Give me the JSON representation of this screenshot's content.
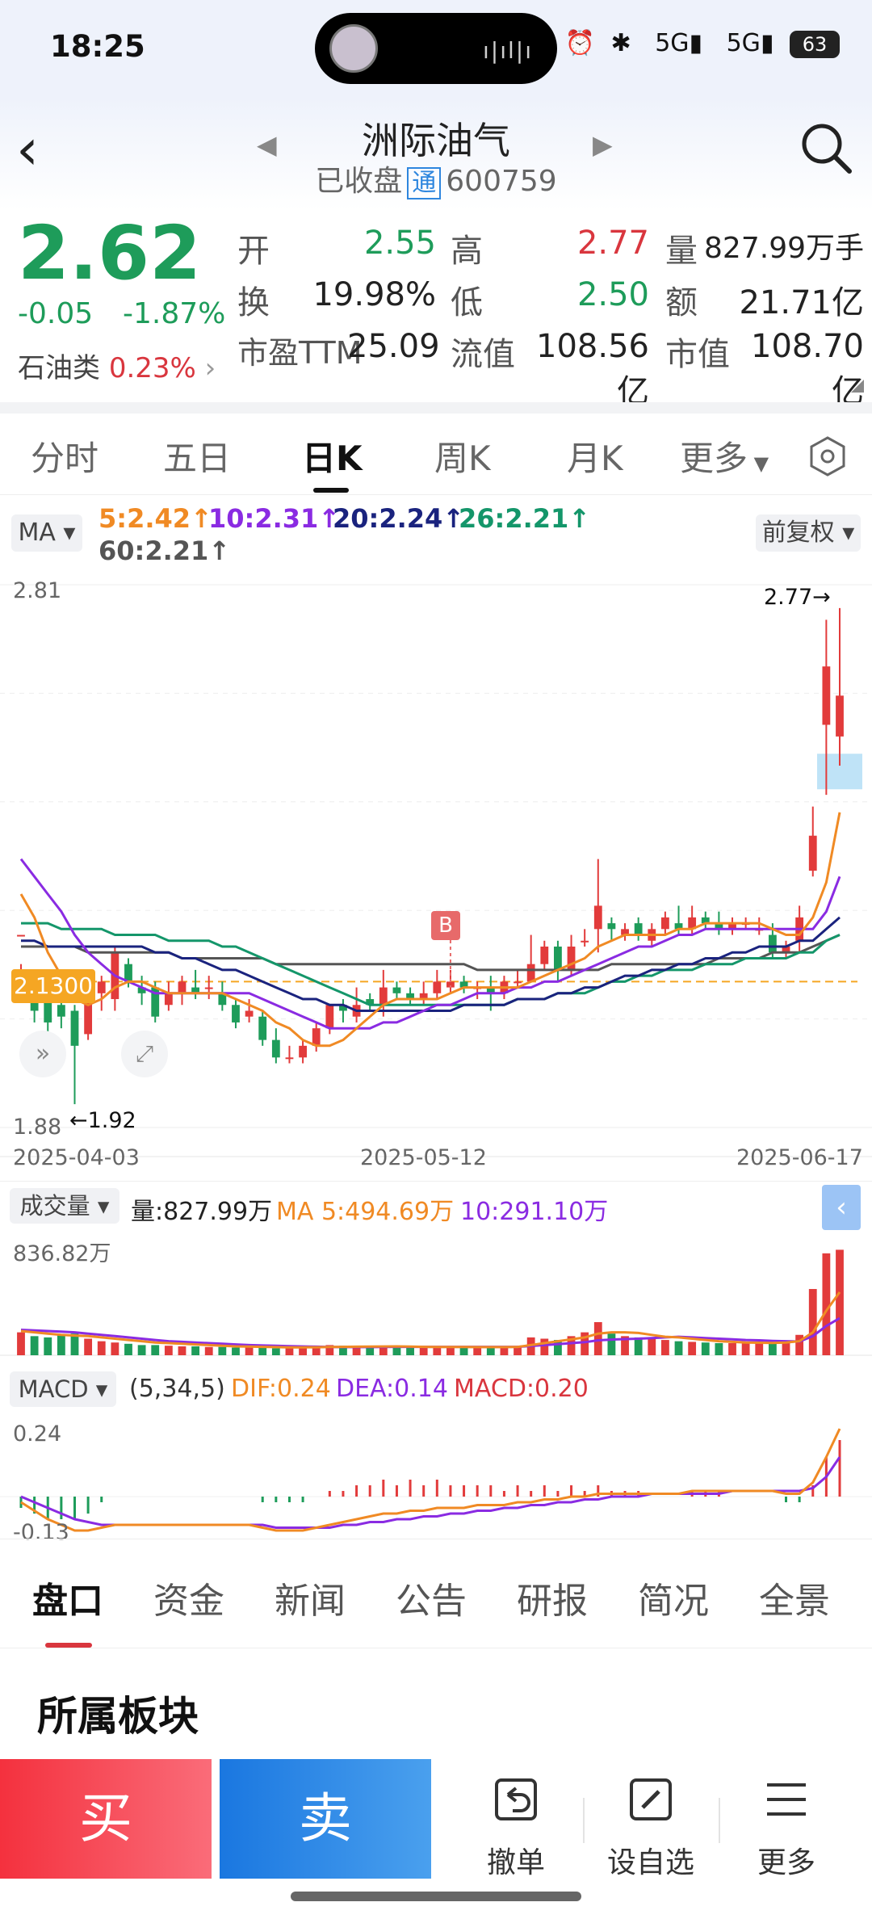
{
  "status_bar": {
    "time": "18:25",
    "battery": "63",
    "network": "5G"
  },
  "header": {
    "name": "洲际油气",
    "status": "已收盘",
    "tong": "通",
    "code": "600759"
  },
  "quote": {
    "price": "2.62",
    "change": "-0.05",
    "change_pct": "-1.87%",
    "sector_name": "石油类",
    "sector_pct": "0.23%",
    "fields": [
      {
        "label": "开",
        "value": "2.55",
        "color": "green"
      },
      {
        "label": "高",
        "value": "2.77",
        "color": "red"
      },
      {
        "label": "量",
        "value": "827.99万手",
        "color": "dark"
      },
      {
        "label": "换",
        "value": "19.98%",
        "color": "dark"
      },
      {
        "label": "低",
        "value": "2.50",
        "color": "green"
      },
      {
        "label": "额",
        "value": "21.71亿",
        "color": "dark"
      },
      {
        "label": "市盈TTM",
        "value": "25.09",
        "color": "dark"
      },
      {
        "label": "流值",
        "value": "108.56亿",
        "color": "dark"
      },
      {
        "label": "市值",
        "value": "108.70亿",
        "color": "dark"
      }
    ]
  },
  "tabs": [
    "分时",
    "五日",
    "日K",
    "周K",
    "月K",
    "更多"
  ],
  "ma": {
    "selector": "MA",
    "items": [
      "5:2.42↑",
      "10:2.31↑",
      "20:2.24↑",
      "26:2.21↑",
      "60:2.21↑"
    ],
    "adjust": "前复权"
  },
  "chart_data": {
    "type": "candlestick",
    "ymax_label": "2.81",
    "ymin_label": "1.88",
    "high_mark": "2.77→",
    "low_mark": "←1.92",
    "price_tag": "2.1300",
    "buy_marker": "B",
    "dates": [
      "2025-04-03",
      "2025-05-12",
      "2025-06-17"
    ],
    "ylim": [
      1.88,
      2.81
    ],
    "candles": [
      [
        2.21,
        2.21,
        2.16,
        2.14
      ],
      [
        2.13,
        2.08,
        2.09,
        2.06
      ],
      [
        2.1,
        2.06,
        2.11,
        2.04
      ],
      [
        2.09,
        2.07,
        2.1,
        2.05
      ],
      [
        2.08,
        2.02,
        2.09,
        1.92
      ],
      [
        2.04,
        2.1,
        2.11,
        2.03
      ],
      [
        2.11,
        2.13,
        2.14,
        2.08
      ],
      [
        2.1,
        2.18,
        2.19,
        2.08
      ],
      [
        2.16,
        2.13,
        2.17,
        2.12
      ],
      [
        2.12,
        2.11,
        2.14,
        2.09
      ],
      [
        2.12,
        2.07,
        2.13,
        2.06
      ],
      [
        2.09,
        2.11,
        2.13,
        2.08
      ],
      [
        2.11,
        2.13,
        2.14,
        2.09
      ],
      [
        2.12,
        2.11,
        2.15,
        2.1
      ],
      [
        2.12,
        2.12,
        2.14,
        2.1
      ],
      [
        2.11,
        2.09,
        2.13,
        2.08
      ],
      [
        2.09,
        2.06,
        2.1,
        2.05
      ],
      [
        2.07,
        2.08,
        2.1,
        2.06
      ],
      [
        2.07,
        2.03,
        2.08,
        2.02
      ],
      [
        2.03,
        2.0,
        2.05,
        1.99
      ],
      [
        2.0,
        2.0,
        2.02,
        1.99
      ],
      [
        2.0,
        2.02,
        2.03,
        1.99
      ],
      [
        2.02,
        2.05,
        2.06,
        2.01
      ],
      [
        2.05,
        2.09,
        2.09,
        2.04
      ],
      [
        2.09,
        2.08,
        2.1,
        2.06
      ],
      [
        2.07,
        2.09,
        2.12,
        2.06
      ],
      [
        2.1,
        2.09,
        2.11,
        2.08
      ],
      [
        2.09,
        2.12,
        2.15,
        2.07
      ],
      [
        2.12,
        2.11,
        2.13,
        2.1
      ],
      [
        2.11,
        2.1,
        2.12,
        2.09
      ],
      [
        2.1,
        2.11,
        2.13,
        2.09
      ],
      [
        2.11,
        2.13,
        2.15,
        2.1
      ],
      [
        2.12,
        2.13,
        2.15,
        2.11
      ],
      [
        2.13,
        2.12,
        2.14,
        2.11
      ],
      [
        2.12,
        2.12,
        2.13,
        2.1
      ],
      [
        2.12,
        2.11,
        2.14,
        2.08
      ],
      [
        2.11,
        2.13,
        2.14,
        2.1
      ],
      [
        2.13,
        2.13,
        2.15,
        2.12
      ],
      [
        2.13,
        2.16,
        2.21,
        2.13
      ],
      [
        2.16,
        2.19,
        2.2,
        2.15
      ],
      [
        2.19,
        2.15,
        2.2,
        2.13
      ],
      [
        2.15,
        2.19,
        2.21,
        2.14
      ],
      [
        2.2,
        2.2,
        2.22,
        2.19
      ],
      [
        2.22,
        2.26,
        2.34,
        2.18
      ],
      [
        2.23,
        2.22,
        2.24,
        2.2
      ],
      [
        2.21,
        2.22,
        2.23,
        2.2
      ],
      [
        2.23,
        2.21,
        2.24,
        2.2
      ],
      [
        2.2,
        2.22,
        2.23,
        2.19
      ],
      [
        2.22,
        2.24,
        2.25,
        2.21
      ],
      [
        2.23,
        2.22,
        2.26,
        2.21
      ],
      [
        2.22,
        2.24,
        2.26,
        2.21
      ],
      [
        2.24,
        2.23,
        2.25,
        2.22
      ],
      [
        2.23,
        2.22,
        2.25,
        2.21
      ],
      [
        2.22,
        2.23,
        2.24,
        2.21
      ],
      [
        2.23,
        2.23,
        2.24,
        2.22
      ],
      [
        2.22,
        2.22,
        2.24,
        2.21
      ],
      [
        2.21,
        2.18,
        2.23,
        2.17
      ],
      [
        2.18,
        2.19,
        2.2,
        2.17
      ],
      [
        2.2,
        2.24,
        2.26,
        2.18
      ],
      [
        2.32,
        2.38,
        2.43,
        2.31
      ],
      [
        2.57,
        2.67,
        2.75,
        2.45
      ],
      [
        2.55,
        2.62,
        2.77,
        2.5
      ]
    ],
    "ma5": [
      2.28,
      2.24,
      2.18,
      2.14,
      2.1,
      2.09,
      2.1,
      2.12,
      2.13,
      2.13,
      2.12,
      2.11,
      2.11,
      2.11,
      2.11,
      2.11,
      2.1,
      2.09,
      2.08,
      2.06,
      2.05,
      2.03,
      2.02,
      2.02,
      2.03,
      2.05,
      2.07,
      2.09,
      2.1,
      2.1,
      2.1,
      2.1,
      2.11,
      2.12,
      2.12,
      2.12,
      2.12,
      2.12,
      2.13,
      2.14,
      2.15,
      2.16,
      2.17,
      2.19,
      2.2,
      2.21,
      2.21,
      2.21,
      2.21,
      2.22,
      2.22,
      2.23,
      2.23,
      2.23,
      2.23,
      2.23,
      2.22,
      2.21,
      2.21,
      2.24,
      2.3,
      2.42
    ],
    "ma10": [
      2.34,
      2.31,
      2.28,
      2.25,
      2.21,
      2.18,
      2.16,
      2.14,
      2.13,
      2.12,
      2.11,
      2.11,
      2.11,
      2.11,
      2.11,
      2.11,
      2.11,
      2.11,
      2.1,
      2.09,
      2.08,
      2.07,
      2.06,
      2.05,
      2.05,
      2.05,
      2.05,
      2.06,
      2.06,
      2.07,
      2.08,
      2.09,
      2.09,
      2.1,
      2.11,
      2.11,
      2.11,
      2.12,
      2.12,
      2.13,
      2.13,
      2.14,
      2.15,
      2.16,
      2.17,
      2.18,
      2.19,
      2.19,
      2.2,
      2.21,
      2.21,
      2.22,
      2.22,
      2.22,
      2.22,
      2.22,
      2.22,
      2.22,
      2.22,
      2.22,
      2.25,
      2.31
    ],
    "ma20": [
      2.2,
      2.2,
      2.19,
      2.19,
      2.19,
      2.19,
      2.19,
      2.19,
      2.19,
      2.19,
      2.18,
      2.18,
      2.17,
      2.17,
      2.16,
      2.15,
      2.15,
      2.14,
      2.13,
      2.12,
      2.11,
      2.1,
      2.1,
      2.09,
      2.09,
      2.08,
      2.08,
      2.08,
      2.08,
      2.08,
      2.08,
      2.08,
      2.08,
      2.09,
      2.09,
      2.09,
      2.09,
      2.1,
      2.1,
      2.1,
      2.11,
      2.11,
      2.12,
      2.12,
      2.13,
      2.14,
      2.14,
      2.15,
      2.15,
      2.16,
      2.16,
      2.17,
      2.17,
      2.18,
      2.18,
      2.19,
      2.19,
      2.19,
      2.2,
      2.2,
      2.22,
      2.24
    ],
    "ma26": [
      2.23,
      2.23,
      2.23,
      2.22,
      2.22,
      2.22,
      2.22,
      2.21,
      2.21,
      2.21,
      2.21,
      2.2,
      2.2,
      2.2,
      2.2,
      2.19,
      2.19,
      2.18,
      2.17,
      2.16,
      2.15,
      2.14,
      2.13,
      2.12,
      2.11,
      2.1,
      2.09,
      2.09,
      2.09,
      2.09,
      2.09,
      2.09,
      2.09,
      2.09,
      2.09,
      2.09,
      2.09,
      2.1,
      2.1,
      2.1,
      2.11,
      2.11,
      2.11,
      2.12,
      2.13,
      2.13,
      2.14,
      2.14,
      2.15,
      2.15,
      2.15,
      2.16,
      2.16,
      2.16,
      2.17,
      2.17,
      2.17,
      2.17,
      2.18,
      2.18,
      2.2,
      2.21
    ],
    "ma60": [
      2.19,
      2.19,
      2.19,
      2.19,
      2.19,
      2.18,
      2.18,
      2.18,
      2.18,
      2.18,
      2.18,
      2.18,
      2.17,
      2.17,
      2.17,
      2.17,
      2.17,
      2.17,
      2.17,
      2.16,
      2.16,
      2.16,
      2.16,
      2.16,
      2.16,
      2.16,
      2.16,
      2.16,
      2.16,
      2.16,
      2.16,
      2.16,
      2.16,
      2.16,
      2.15,
      2.15,
      2.15,
      2.15,
      2.15,
      2.15,
      2.15,
      2.15,
      2.15,
      2.15,
      2.16,
      2.16,
      2.16,
      2.16,
      2.16,
      2.16,
      2.16,
      2.16,
      2.17,
      2.17,
      2.17,
      2.17,
      2.18,
      2.18,
      2.18,
      2.19,
      2.2,
      2.21
    ],
    "volume": {
      "selector": "成交量",
      "summary": "量:827.99万",
      "ma5_text": "MA 5:494.69万",
      "ma10_text": "10:291.10万",
      "max_label": "836.82万",
      "values": [
        180,
        150,
        140,
        160,
        170,
        130,
        110,
        100,
        90,
        80,
        80,
        75,
        70,
        70,
        65,
        65,
        60,
        60,
        60,
        55,
        55,
        60,
        70,
        80,
        75,
        70,
        65,
        70,
        65,
        60,
        60,
        65,
        70,
        65,
        60,
        60,
        65,
        70,
        140,
        130,
        120,
        150,
        180,
        260,
        170,
        150,
        140,
        130,
        120,
        110,
        105,
        100,
        95,
        95,
        100,
        95,
        90,
        110,
        160,
        520,
        800,
        828
      ],
      "ma5": [
        190,
        180,
        170,
        160,
        155,
        150,
        140,
        130,
        120,
        110,
        100,
        95,
        90,
        85,
        80,
        75,
        70,
        68,
        66,
        64,
        62,
        62,
        63,
        65,
        66,
        67,
        68,
        69,
        70,
        68,
        66,
        65,
        65,
        65,
        64,
        64,
        64,
        65,
        80,
        95,
        110,
        125,
        140,
        170,
        180,
        180,
        175,
        160,
        145,
        140,
        130,
        120,
        110,
        105,
        100,
        98,
        97,
        100,
        110,
        180,
        350,
        495
      ],
      "ma10": [
        200,
        195,
        190,
        185,
        180,
        170,
        160,
        150,
        140,
        130,
        120,
        110,
        105,
        100,
        95,
        90,
        85,
        80,
        77,
        74,
        71,
        69,
        67,
        65,
        64,
        64,
        64,
        65,
        66,
        66,
        66,
        66,
        66,
        66,
        66,
        66,
        66,
        66,
        73,
        80,
        87,
        95,
        103,
        117,
        123,
        127,
        130,
        135,
        140,
        145,
        140,
        135,
        130,
        125,
        120,
        117,
        113,
        110,
        108,
        150,
        230,
        291
      ]
    },
    "macd": {
      "selector": "MACD",
      "params": "(5,34,5)",
      "dif_text": "DIF:0.24",
      "dea_text": "DEA:0.14",
      "macd_text": "MACD:0.20",
      "max_label": "0.24",
      "min_label": "-0.13",
      "dif": [
        -0.02,
        -0.05,
        -0.08,
        -0.1,
        -0.12,
        -0.12,
        -0.11,
        -0.1,
        -0.1,
        -0.1,
        -0.1,
        -0.1,
        -0.1,
        -0.1,
        -0.1,
        -0.1,
        -0.1,
        -0.1,
        -0.11,
        -0.12,
        -0.12,
        -0.12,
        -0.11,
        -0.1,
        -0.09,
        -0.08,
        -0.07,
        -0.06,
        -0.06,
        -0.05,
        -0.05,
        -0.04,
        -0.04,
        -0.04,
        -0.03,
        -0.03,
        -0.03,
        -0.02,
        -0.02,
        -0.01,
        -0.01,
        0.0,
        0.0,
        0.01,
        0.01,
        0.01,
        0.01,
        0.01,
        0.01,
        0.01,
        0.02,
        0.02,
        0.02,
        0.02,
        0.02,
        0.02,
        0.02,
        0.01,
        0.01,
        0.05,
        0.14,
        0.24
      ],
      "dea": [
        0.0,
        -0.02,
        -0.04,
        -0.06,
        -0.08,
        -0.09,
        -0.1,
        -0.1,
        -0.1,
        -0.1,
        -0.1,
        -0.1,
        -0.1,
        -0.1,
        -0.1,
        -0.1,
        -0.1,
        -0.1,
        -0.1,
        -0.11,
        -0.11,
        -0.11,
        -0.11,
        -0.11,
        -0.1,
        -0.1,
        -0.09,
        -0.09,
        -0.08,
        -0.08,
        -0.07,
        -0.07,
        -0.06,
        -0.06,
        -0.05,
        -0.05,
        -0.04,
        -0.04,
        -0.03,
        -0.03,
        -0.02,
        -0.02,
        -0.01,
        -0.01,
        0.0,
        0.0,
        0.0,
        0.01,
        0.01,
        0.01,
        0.01,
        0.01,
        0.01,
        0.02,
        0.02,
        0.02,
        0.02,
        0.02,
        0.02,
        0.03,
        0.07,
        0.14
      ],
      "hist": [
        -0.04,
        -0.06,
        -0.08,
        -0.08,
        -0.08,
        -0.06,
        -0.02,
        0.0,
        0.0,
        0.0,
        0.0,
        0.0,
        0.0,
        0.0,
        0.0,
        0.0,
        0.0,
        0.0,
        -0.02,
        -0.02,
        -0.02,
        -0.02,
        0.0,
        0.02,
        0.02,
        0.04,
        0.04,
        0.06,
        0.04,
        0.06,
        0.04,
        0.06,
        0.04,
        0.04,
        0.04,
        0.04,
        0.02,
        0.04,
        0.02,
        0.04,
        0.02,
        0.04,
        0.02,
        0.04,
        0.02,
        0.02,
        0.02,
        0.0,
        0.0,
        0.0,
        0.02,
        0.02,
        0.02,
        0.0,
        0.0,
        0.0,
        0.0,
        -0.02,
        -0.02,
        0.04,
        0.14,
        0.2
      ]
    }
  },
  "bottom_tabs": [
    "盘口",
    "资金",
    "新闻",
    "公告",
    "研报",
    "简况",
    "全景"
  ],
  "section_title": "所属板块",
  "actions": {
    "buy": "买",
    "sell": "卖",
    "cancel": "撤单",
    "watch": "设自选",
    "more": "更多"
  },
  "colors": {
    "up": "#e23b3b",
    "down": "#1e9c5a",
    "ma5": "#f08a24",
    "ma10": "#8a2be2",
    "ma20": "#1a237e",
    "ma26": "#14966a",
    "ma60": "#555555",
    "accent": "#2e86de"
  }
}
